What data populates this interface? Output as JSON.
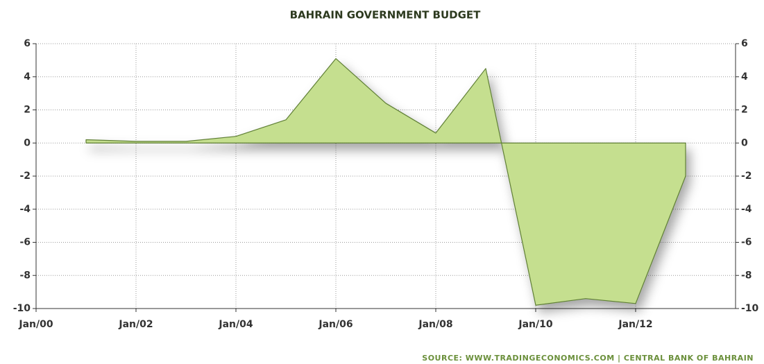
{
  "chart_data": {
    "type": "area",
    "title": "BAHRAIN GOVERNMENT BUDGET",
    "source": "SOURCE: WWW.TRADINGECONOMICS.COM | CENTRAL BANK OF BAHRAIN",
    "x": [
      2001,
      2002,
      2003,
      2004,
      2005,
      2006,
      2007,
      2008,
      2009,
      2010,
      2011,
      2012,
      2013
    ],
    "values": [
      0.2,
      0.1,
      0.1,
      0.4,
      1.4,
      5.1,
      2.4,
      0.6,
      4.5,
      -9.8,
      -9.4,
      -9.7,
      -2.0
    ],
    "color": "#c5df8f",
    "line_color": "#5f7f35",
    "xlim": [
      2000,
      2014
    ],
    "xticks": [
      {
        "value": 2000,
        "label": "Jan/00"
      },
      {
        "value": 2002,
        "label": "Jan/02"
      },
      {
        "value": 2004,
        "label": "Jan/04"
      },
      {
        "value": 2006,
        "label": "Jan/06"
      },
      {
        "value": 2008,
        "label": "Jan/08"
      },
      {
        "value": 2010,
        "label": "Jan/10"
      },
      {
        "value": 2012,
        "label": "Jan/12"
      }
    ],
    "ylim": [
      -10,
      6
    ],
    "yticks": [
      -10,
      -8,
      -6,
      -4,
      -2,
      0,
      2,
      4,
      6
    ],
    "grid": true
  }
}
